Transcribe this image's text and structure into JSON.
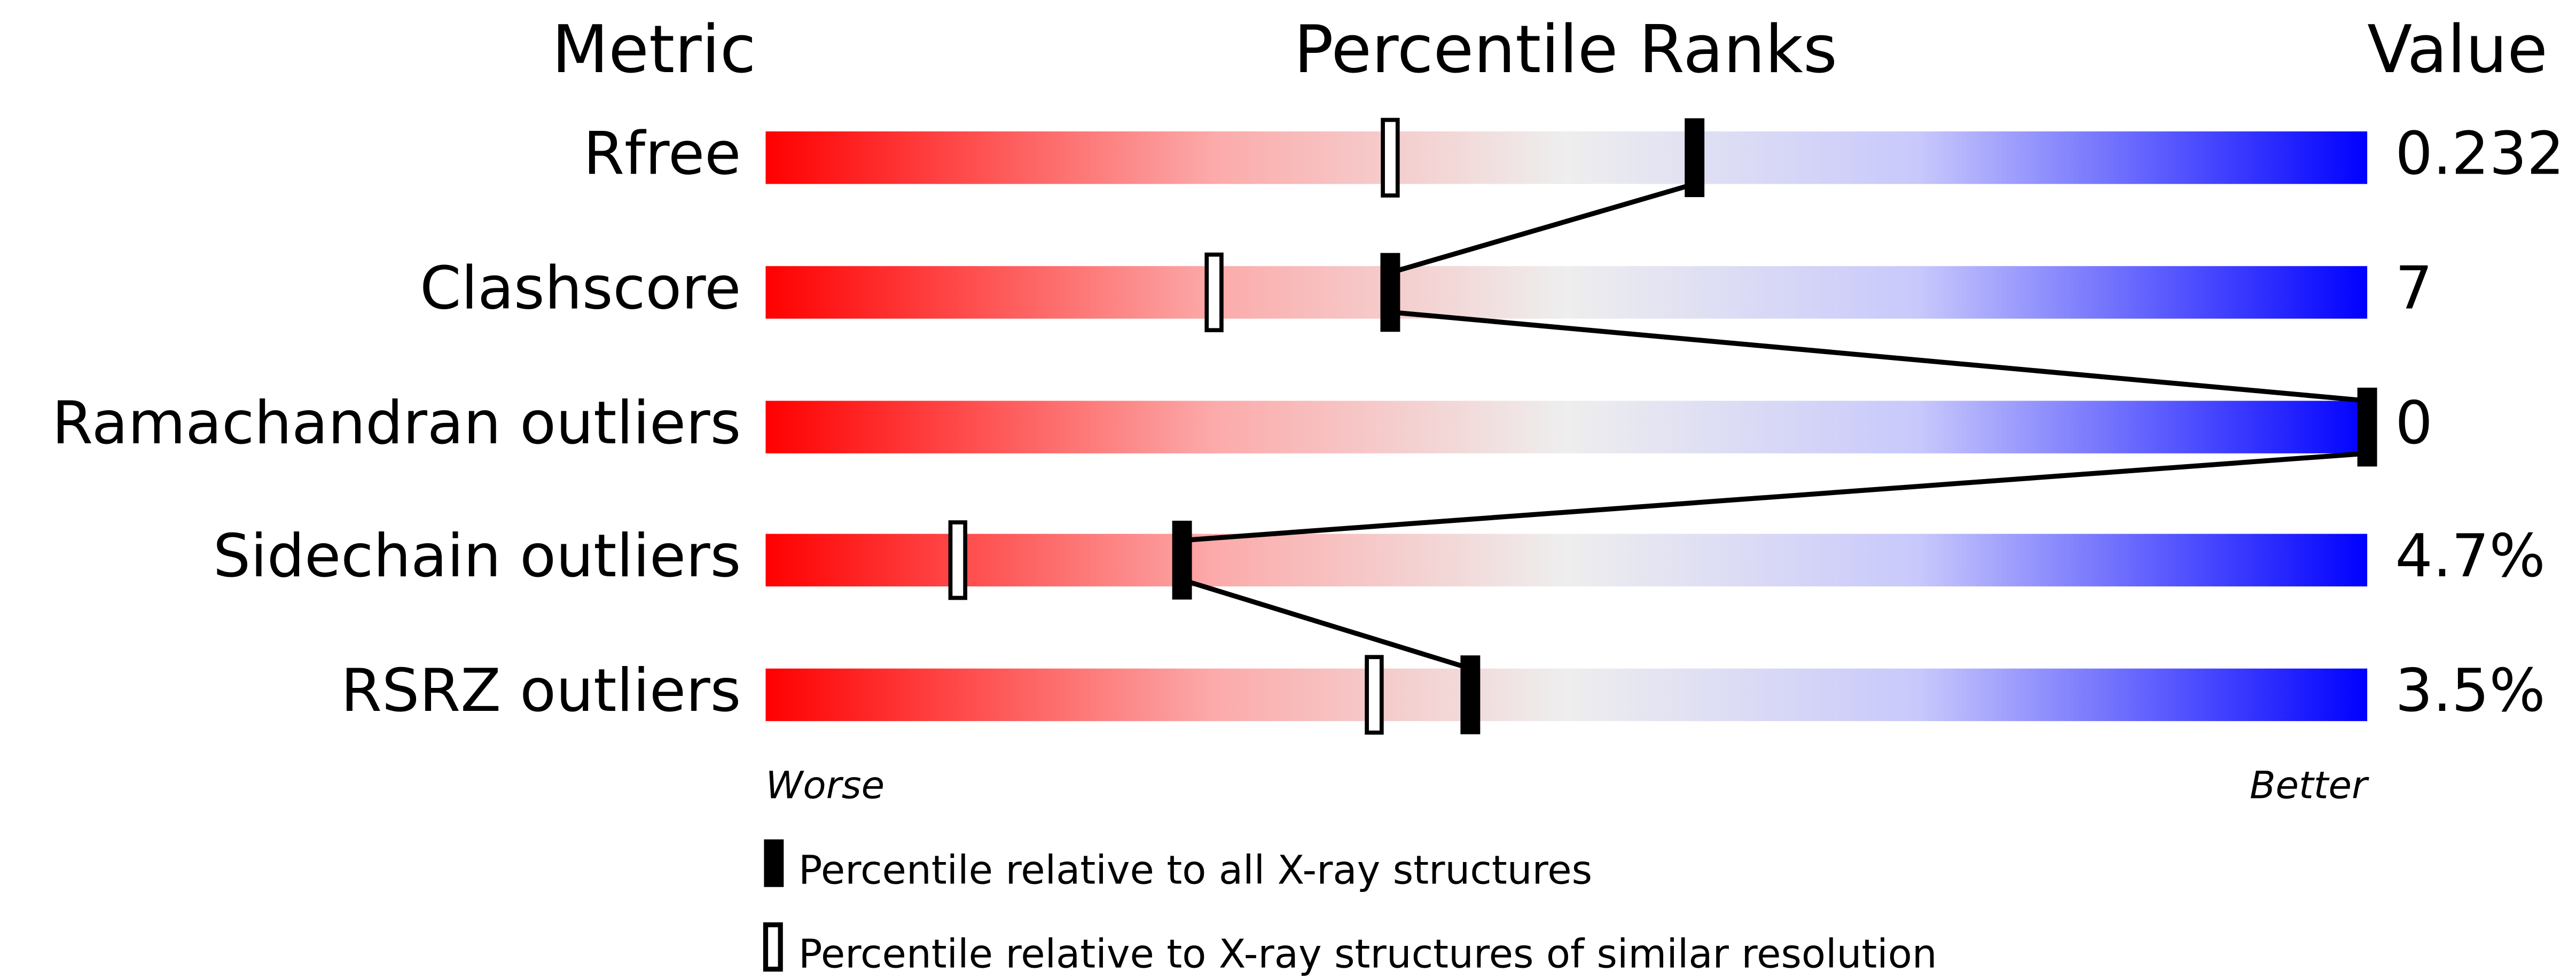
{
  "chart_data": {
    "type": "bar",
    "headers": {
      "metric": "Metric",
      "ranks": "Percentile Ranks",
      "value": "Value"
    },
    "xlim": [
      0,
      100
    ],
    "gradient_colors": {
      "worse": "#ff0000",
      "middle": "#eeeeee",
      "better": "#0000ff"
    },
    "rows": [
      {
        "metric": "Rfree",
        "value": "0.232",
        "percentile_all": 58,
        "percentile_similar": 39
      },
      {
        "metric": "Clashscore",
        "value": "7",
        "percentile_all": 39,
        "percentile_similar": 28
      },
      {
        "metric": "Ramachandran outliers",
        "value": "0",
        "percentile_all": 100,
        "percentile_similar": null
      },
      {
        "metric": "Sidechain outliers",
        "value": "4.7%",
        "percentile_all": 26,
        "percentile_similar": 12
      },
      {
        "metric": "RSRZ outliers",
        "value": "3.5%",
        "percentile_all": 44,
        "percentile_similar": 38
      }
    ],
    "axis_labels": {
      "left": "Worse",
      "right": "Better"
    },
    "legend": [
      {
        "marker": "filled",
        "label": "Percentile relative to all X-ray structures"
      },
      {
        "marker": "hollow",
        "label": "Percentile relative to X-ray structures of similar resolution"
      }
    ]
  }
}
